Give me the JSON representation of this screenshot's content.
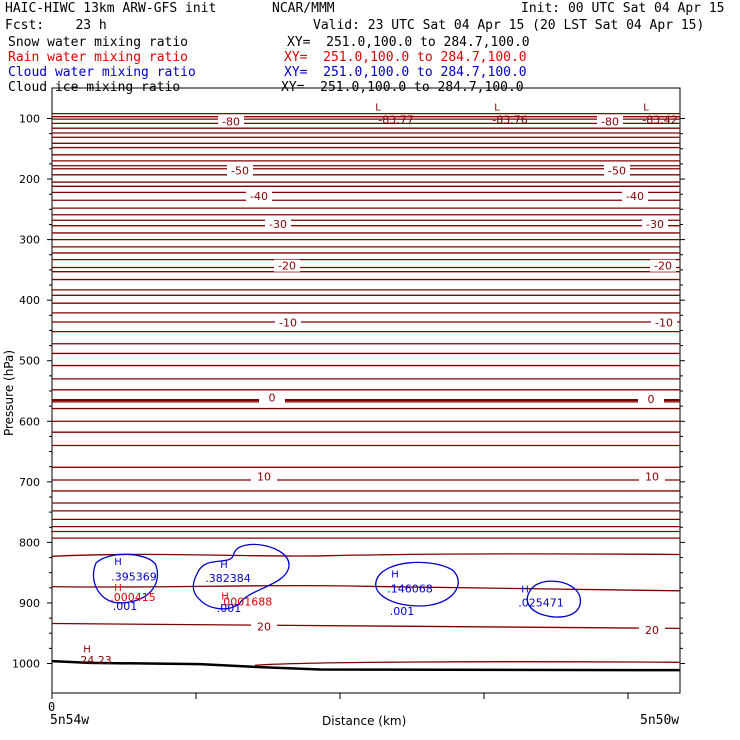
{
  "header": {
    "model": "HAIC-HIWC 13km ARW-GFS init",
    "org": "NCAR/MMM",
    "init": "Init: 00 UTC Sat 04 Apr 15",
    "fcst": "Fcst:    23 h",
    "valid": "Valid: 23 UTC Sat 04 Apr 15 (20 LST Sat 04 Apr 15)"
  },
  "legend": [
    {
      "label": "Snow water mixing ratio",
      "xy": "XY=  251.0,100.0 to 284.7,100.0",
      "color": "#000000"
    },
    {
      "label": "Rain water mixing ratio",
      "xy": "XY=  251.0,100.0 to 284.7,100.0",
      "color": "#e00000"
    },
    {
      "label": "Cloud water mixing ratio",
      "xy": "XY=  251.0,100.0 to 284.7,100.0",
      "color": "#0000cc"
    },
    {
      "label": "Cloud ice mixing ratio",
      "xy": "XY=  251.0,100.0 to 284.7,100.0",
      "color": "#000000"
    }
  ],
  "chart_data": {
    "type": "line",
    "title": "",
    "xlabel": "Distance (km)",
    "ylabel": "Pressure (hPa)",
    "x_tick_labels": {
      "left_value": "0",
      "left_endpoint": "5n54w",
      "right_endpoint": "5n50w"
    },
    "y_ticks": [
      100,
      200,
      300,
      400,
      500,
      600,
      700,
      800,
      900,
      1000
    ],
    "colors": {
      "temperature": "#800000",
      "rain": "#e00000",
      "cloud": "#0000cc",
      "ground": "#000000"
    },
    "isotherms": [
      {
        "value": -83.77,
        "label": "-83.77"
      },
      {
        "value": -83.76,
        "label": "-83.76"
      },
      {
        "value": -83.42,
        "label": "-83.42"
      },
      {
        "value": -80,
        "label": "-80"
      },
      {
        "value": -50,
        "label": "-50"
      },
      {
        "value": -40,
        "label": "-40"
      },
      {
        "value": -30,
        "label": "-30"
      },
      {
        "value": -20,
        "label": "-20"
      },
      {
        "value": -10,
        "label": "-10"
      },
      {
        "value": 0,
        "label": "0"
      },
      {
        "value": 10,
        "label": "10"
      },
      {
        "value": 20,
        "label": "20"
      }
    ],
    "extrema": [
      {
        "kind": "L",
        "value": "-83.77",
        "color": "#800000"
      },
      {
        "kind": "L",
        "value": "-83.76",
        "color": "#800000"
      },
      {
        "kind": "L",
        "value": "-83.42",
        "color": "#800000"
      },
      {
        "kind": "H",
        "value": "24.23",
        "color": "#800000"
      },
      {
        "kind": "H",
        "value": ".395369",
        "color": "#0000cc"
      },
      {
        "kind": "H",
        "value": ".382384",
        "color": "#0000cc"
      },
      {
        "kind": "H",
        "value": ".146068",
        "color": "#0000cc"
      },
      {
        "kind": "H",
        "value": ".025471",
        "color": "#0000cc"
      },
      {
        "kind": "H",
        "value": ".000415",
        "color": "#e00000"
      },
      {
        "kind": "H",
        "value": ".0001688",
        "color": "#e00000"
      }
    ],
    "contour_labels": [
      ".001",
      ".001",
      ".001"
    ]
  }
}
